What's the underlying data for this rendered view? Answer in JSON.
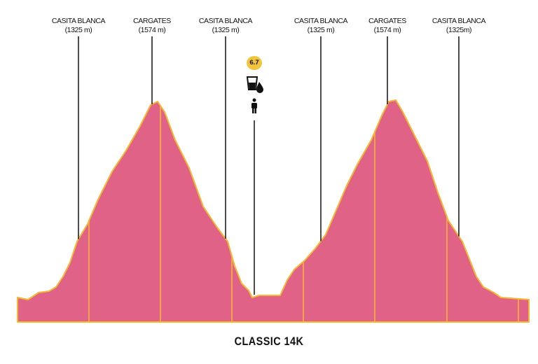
{
  "title": "CLASSIC 14K",
  "colors": {
    "profile_fill": "#e06286",
    "profile_stroke": "#f5b731",
    "badge": "#f2c43d"
  },
  "waypoints": [
    {
      "name": "CASITA BLANCA",
      "elevation": "(1325 m)"
    },
    {
      "name": "CARGATES",
      "elevation": "(1574 m)"
    },
    {
      "name": "CASITA BLANCA",
      "elevation": "(1325 m)"
    },
    {
      "name": "CASITA BLANCA",
      "elevation": "(1325 m)"
    },
    {
      "name": "CARGATES",
      "elevation": "(1574 m)"
    },
    {
      "name": "CASITA BLANCA",
      "elevation": "(1325m)"
    }
  ],
  "aid_station": {
    "km": "6.7",
    "icons": [
      "water-drink-icon",
      "person-icon"
    ]
  }
}
